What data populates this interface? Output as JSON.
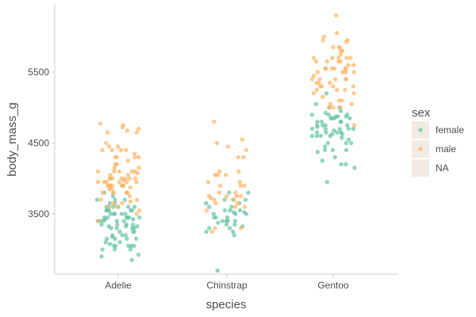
{
  "chart_data": {
    "type": "scatter",
    "jitter": true,
    "xlabel": "species",
    "ylabel": "body_mass_g",
    "categories": [
      "Adelie",
      "Chinstrap",
      "Gentoo"
    ],
    "y_ticks": [
      3500,
      4500,
      5500
    ],
    "ylim": [
      2650,
      6450
    ],
    "grid": false,
    "legend": {
      "title": "sex",
      "position": "right",
      "entries": [
        {
          "label": "female",
          "color": "#66C2A5"
        },
        {
          "label": "male",
          "color": "#FDB462"
        },
        {
          "label": "NA",
          "color": null
        }
      ]
    },
    "series": [
      {
        "name": "female",
        "color": "#66C2A5",
        "points": [
          {
            "x": "Adelie",
            "y": [
              3700,
              3650,
              3400,
              3450,
              3325,
              3200,
              3800,
              3600,
              3450,
              3300,
              3050,
              3300,
              3550,
              3425,
              3500,
              3150,
              3100,
              3000,
              3250,
              3350,
              2900,
              3400,
              3600,
              3175,
              3325,
              3200,
              3150,
              3050,
              3000,
              3700,
              3550,
              3450,
              3400,
              3500,
              3750,
              3600,
              2925,
              3300,
              3450,
              3600,
              3050,
              3300,
              2850,
              3075,
              3250,
              3425,
              3450,
              3350,
              3200,
              3400,
              3350,
              3500,
              3150,
              3450,
              3600,
              3050,
              3500,
              3325,
              3150,
              3400,
              3550,
              3000,
              3500,
              3700,
              3550,
              3600,
              3650,
              3550,
              3050,
              3350,
              3100,
              3250,
              3900
            ]
          },
          {
            "x": "Chinstrap",
            "y": [
              3500,
              3250,
              3800,
              3700,
              3450,
              3525,
              3375,
              3350,
              3500,
              3450,
              3400,
              3525,
              3600,
              3650,
              3250,
              3700,
              3400,
              3550,
              3350,
              2700,
              3650,
              3800,
              3400,
              3500,
              3300,
              3200,
              3325,
              3550,
              3400,
              3300,
              3700,
              3600,
              3450,
              3550
            ]
          },
          {
            "x": "Gentoo",
            "y": [
              4500,
              4450,
              4550,
              4800,
              4400,
              5000,
              4600,
              4700,
              4750,
              4625,
              4900,
              4200,
              4150,
              4650,
              4700,
              4400,
              4600,
              4750,
              4850,
              5000,
              4200,
              4800,
              4400,
              4700,
              4500,
              4650,
              4725,
              4875,
              4600,
              4950,
              4850,
              4700,
              4800,
              3950,
              4500,
              4250,
              4650,
              4600,
              4300,
              4700,
              4575,
              4675,
              4750,
              4875,
              4925,
              4625,
              4850,
              4375,
              4850,
              5200,
              4900,
              4875,
              4900,
              5050,
              4800,
              4650,
              4750
            ]
          }
        ]
      },
      {
        "name": "male",
        "color": "#FDB462",
        "points": [
          {
            "x": "Adelie",
            "y": [
              3750,
              4675,
              3800,
              4400,
              4500,
              4200,
              3950,
              3900,
              3700,
              4300,
              3900,
              4150,
              3950,
              4650,
              3900,
              4700,
              3900,
              4050,
              4000,
              4100,
              4450,
              3950,
              4250,
              4100,
              3950,
              4400,
              3900,
              3800,
              4000,
              4100,
              4400,
              4450,
              4300,
              4000,
              3800,
              3975,
              4000,
              3850,
              4200,
              4300,
              3650,
              4050,
              4650,
              3500,
              4750,
              3650,
              4350,
              3600,
              3400,
              4100,
              3800,
              3700,
              4300,
              3950,
              4150,
              3800,
              3950,
              4000,
              3850,
              4075,
              3800,
              3550,
              3675,
              3600,
              4000,
              4100,
              4000,
              3875,
              4725,
              3900,
              4400,
              4775
            ]
          },
          {
            "x": "Chinstrap",
            "y": [
              3900,
              3650,
              3550,
              3700,
              4050,
              3900,
              3750,
              4400,
              4450,
              4300,
              3700,
              3725,
              3300,
              3600,
              3950,
              4500,
              3800,
              4550,
              4100,
              3600,
              3800,
              4800,
              3300,
              3750,
              4300,
              4050,
              3250,
              3750,
              3650,
              3900,
              4050,
              3750,
              3950,
              4100
            ]
          },
          {
            "x": "Gentoo",
            "y": [
              5700,
              5700,
              5400,
              5200,
              5150,
              5550,
              5850,
              5850,
              6300,
              5350,
              5700,
              5050,
              5100,
              5650,
              5550,
              5250,
              6050,
              5400,
              5250,
              5350,
              5700,
              4750,
              5550,
              5400,
              5300,
              5300,
              5000,
              5050,
              5000,
              5550,
              5300,
              5650,
              5700,
              5800,
              5550,
              5000,
              5100,
              5800,
              6000,
              5950,
              5450,
              5350,
              5600,
              5300,
              5550,
              5400,
              5650,
              5200,
              5925,
              5250,
              5600,
              5500,
              5500,
              5950,
              5500,
              5850,
              5750,
              5500,
              5400,
              5650
            ]
          }
        ]
      }
    ]
  }
}
